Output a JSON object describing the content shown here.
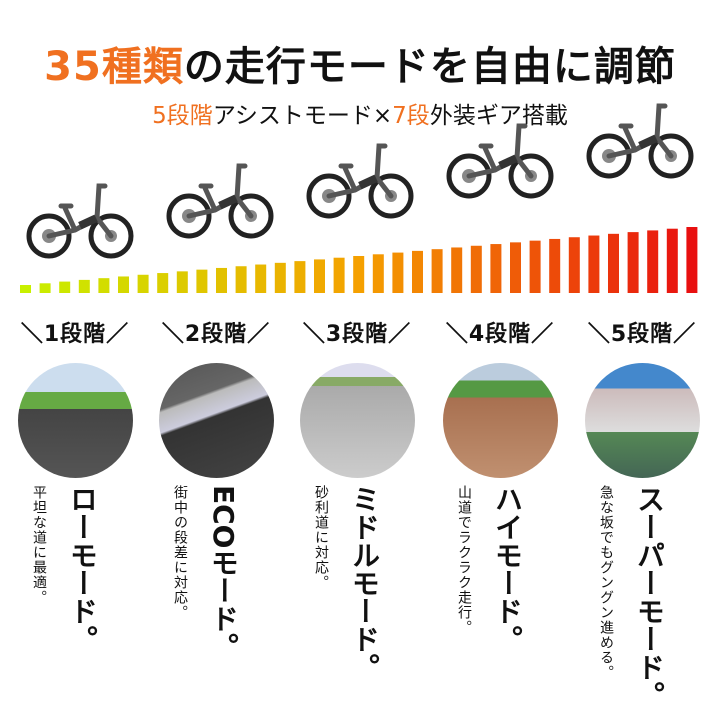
{
  "title": {
    "highlight": "35種類",
    "rest": "の走行モードを自由に調節"
  },
  "subtitle": {
    "part1": "5段階",
    "part2": "アシストモード×",
    "part3": "7段",
    "part4": "外装ギア搭載"
  },
  "colors": {
    "accent": "#f07020",
    "bar_start": "#c8f000",
    "bar_mid": "#f5a000",
    "bar_end": "#e81010"
  },
  "gear_bars": {
    "count": 35
  },
  "modes": [
    {
      "level": "＼1段階／",
      "name": "ローモード。",
      "desc": "平坦な道に最適。",
      "image": "paved-road"
    },
    {
      "level": "＼2段階／",
      "name": "ECOモード。",
      "desc": "街中の段差に対応。",
      "image": "curb"
    },
    {
      "level": "＼3段階／",
      "name": "ミドルモード。",
      "desc": "砂利道に対応。",
      "image": "gravel-road"
    },
    {
      "level": "＼4段階／",
      "name": "ハイモード。",
      "desc": "山道でラクラク走行。",
      "image": "dirt-trail"
    },
    {
      "level": "＼5段階／",
      "name": "スーパーモード。",
      "desc": "急な坂でもグングン進める。",
      "image": "steep-slope"
    }
  ]
}
